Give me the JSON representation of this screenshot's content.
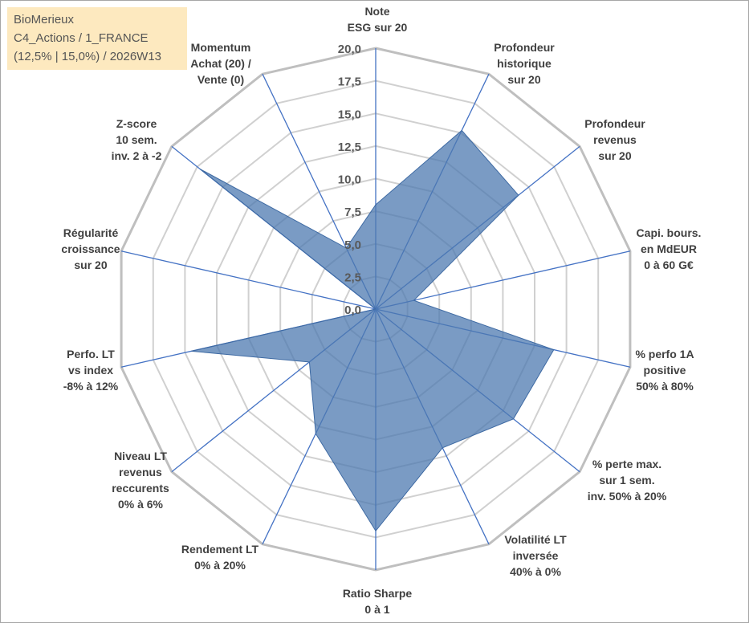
{
  "info": {
    "name": "BioMerieux",
    "portfolio": "C4_Actions / 1_FRANCE",
    "params": "(12,5% | 15,0%) / 2026W13"
  },
  "chart_data": {
    "type": "radar",
    "title": "",
    "rlim": [
      0,
      20
    ],
    "ticks": [
      "0,0",
      "2,5",
      "5,0",
      "7,5",
      "10,0",
      "12,5",
      "15,0",
      "17,5",
      "20,0"
    ],
    "categories": [
      [
        "Note",
        "ESG sur 20"
      ],
      [
        "Profondeur",
        "historique",
        "sur 20"
      ],
      [
        "Profondeur",
        "revenus",
        "sur 20"
      ],
      [
        "Capi. bours.",
        "en MdEUR",
        "0 à 60 G€"
      ],
      [
        "% perfo 1A",
        "positive",
        "50% à 80%"
      ],
      [
        "% perte max.",
        "sur 1 sem.",
        "inv. 50% à 20%"
      ],
      [
        "Volatilité LT",
        "inversée",
        "40% à 0%"
      ],
      [
        "Ratio Sharpe",
        "0 à 1"
      ],
      [
        "Rendement LT",
        "0% à 20%"
      ],
      [
        "Niveau LT",
        "revenus",
        "reccurents",
        "0% à 6%"
      ],
      [
        "Perfo. LT",
        "vs index",
        "-8% à 12%"
      ],
      [
        "Régularité",
        "croissance",
        "sur 20"
      ],
      [
        "Z-score",
        "10 sem.",
        "inv. 2 à -2"
      ],
      [
        "Momentum",
        "Achat (20) /",
        "Vente (0)"
      ]
    ],
    "series": [
      {
        "name": "BioMerieux",
        "color": "#4e79b0",
        "values": [
          8.0,
          15.2,
          14.0,
          3.0,
          14.0,
          13.5,
          11.8,
          17.0,
          10.6,
          6.5,
          14.5,
          0.0,
          17.2,
          5.2
        ]
      }
    ]
  }
}
